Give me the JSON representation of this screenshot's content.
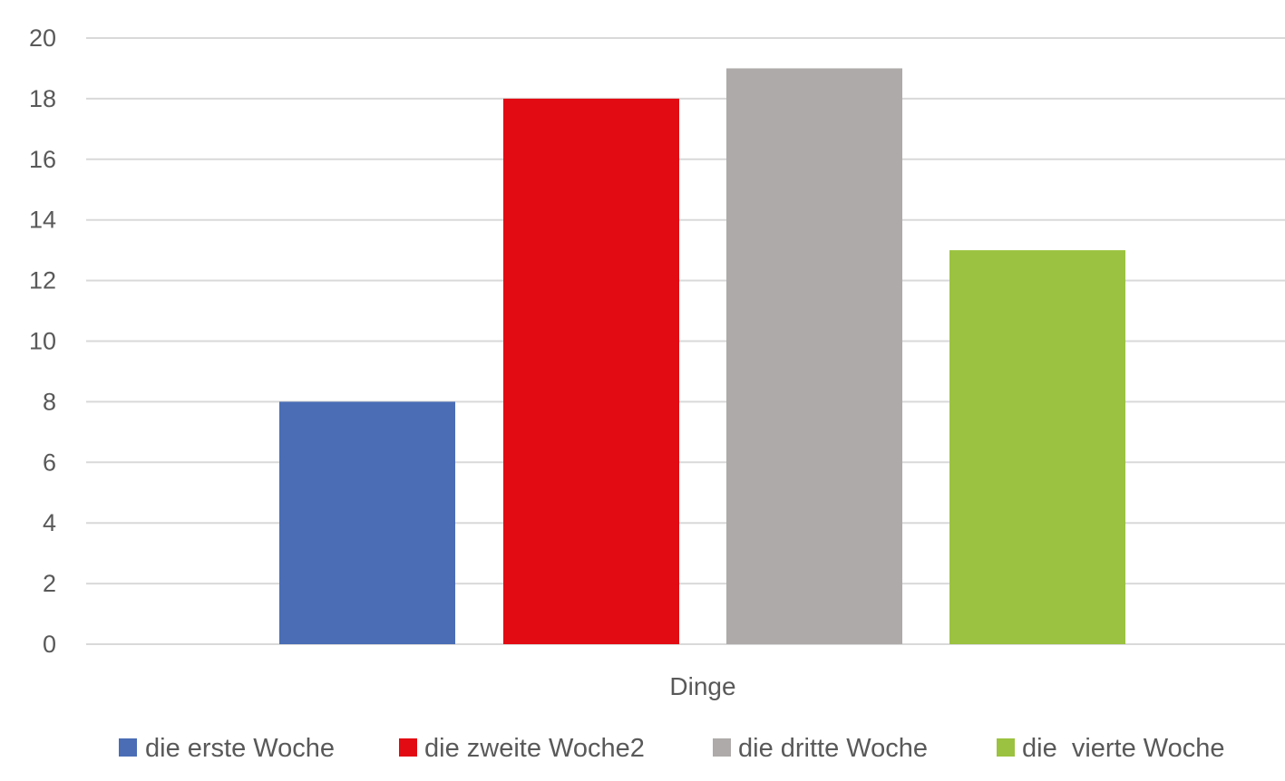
{
  "chart_data": {
    "type": "bar",
    "categories": [
      "Dinge"
    ],
    "series": [
      {
        "name": "die erste Woche",
        "values": [
          8
        ],
        "color": "#4a6db5"
      },
      {
        "name": "die zweite Woche2",
        "values": [
          18
        ],
        "color": "#e30b13"
      },
      {
        "name": "die dritte Woche",
        "values": [
          19
        ],
        "color": "#adaaa9"
      },
      {
        "name": "die  vierte Woche",
        "values": [
          13
        ],
        "color": "#9bc240"
      }
    ],
    "ylim": [
      0,
      20
    ],
    "yticks": [
      0,
      2,
      4,
      6,
      8,
      10,
      12,
      14,
      16,
      18,
      20
    ],
    "title": "",
    "xlabel": "",
    "ylabel": "",
    "grid": true,
    "legend_position": "bottom",
    "gridline_color": "#d9d9d9",
    "text_color": "#595959"
  }
}
